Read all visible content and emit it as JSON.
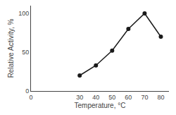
{
  "chart_data": {
    "type": "line",
    "x": [
      30,
      40,
      50,
      60,
      70,
      80
    ],
    "values": [
      20,
      33,
      52,
      80,
      100,
      70
    ],
    "xlabel": "Temperature, °C",
    "ylabel": "Relative Activity, %",
    "xlim": [
      0,
      85
    ],
    "ylim": [
      0,
      110
    ],
    "xticks": [
      0,
      30,
      40,
      50,
      60,
      70,
      80
    ],
    "yticks": [
      0,
      50,
      100
    ],
    "color": "#1a1a1a",
    "marker": "circle",
    "grid": false
  }
}
